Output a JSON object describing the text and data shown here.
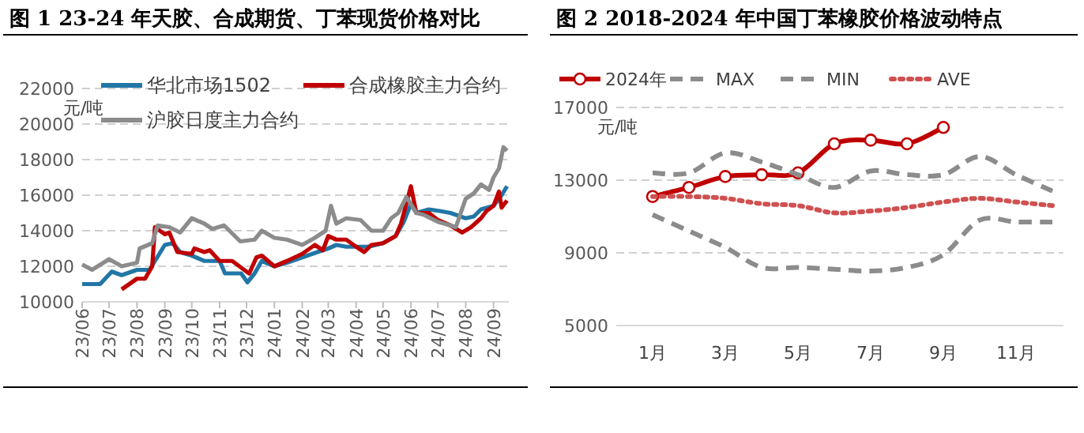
{
  "chart_data": [
    {
      "type": "line",
      "title": "图 1 23-24 年天胶、合成期货、丁苯现货价格对比",
      "ylabel": "元/吨",
      "xlim": [
        "2023-06-01",
        "2024-09-18"
      ],
      "ylim": [
        10000,
        22000
      ],
      "yticks": [
        10000,
        12000,
        14000,
        16000,
        18000,
        20000,
        22000
      ],
      "xticks": [
        {
          "value": "2023-06-01",
          "label": "23/06"
        },
        {
          "value": "2023-07-01",
          "label": "23/07"
        },
        {
          "value": "2023-08-01",
          "label": "23/08"
        },
        {
          "value": "2023-09-01",
          "label": "23/09"
        },
        {
          "value": "2023-10-01",
          "label": "23/10"
        },
        {
          "value": "2023-11-01",
          "label": "23/11"
        },
        {
          "value": "2023-12-01",
          "label": "23/12"
        },
        {
          "value": "2024-01-01",
          "label": "24/01"
        },
        {
          "value": "2024-02-01",
          "label": "24/02"
        },
        {
          "value": "2024-03-01",
          "label": "24/03"
        },
        {
          "value": "2024-04-01",
          "label": "24/04"
        },
        {
          "value": "2024-05-01",
          "label": "24/05"
        },
        {
          "value": "2024-06-01",
          "label": "24/06"
        },
        {
          "value": "2024-07-01",
          "label": "24/07"
        },
        {
          "value": "2024-08-01",
          "label": "24/08"
        },
        {
          "value": "2024-09-01",
          "label": "24/09"
        }
      ],
      "grid": "y",
      "legend": "top",
      "line_style": "solid",
      "marker": "none",
      "series": [
        {
          "name": "华北市场1502",
          "color": "#2176a6",
          "x": [
            "2023-06-01",
            "2023-06-21",
            "2023-07-04",
            "2023-07-15",
            "2023-08-01",
            "2023-08-15",
            "2023-09-01",
            "2023-09-10",
            "2023-09-18",
            "2023-10-01",
            "2023-10-15",
            "2023-11-01",
            "2023-11-07",
            "2023-11-25",
            "2023-12-02",
            "2023-12-10",
            "2023-12-18",
            "2024-01-01",
            "2024-01-15",
            "2024-02-01",
            "2024-02-18",
            "2024-03-01",
            "2024-03-10",
            "2024-03-21",
            "2024-04-01",
            "2024-04-15",
            "2024-05-01",
            "2024-05-15",
            "2024-05-24",
            "2024-06-01",
            "2024-06-07",
            "2024-06-21",
            "2024-07-04",
            "2024-07-15",
            "2024-08-01",
            "2024-08-10",
            "2024-08-18",
            "2024-09-01",
            "2024-09-10",
            "2024-09-16"
          ],
          "values": [
            11000,
            11000,
            11700,
            11500,
            11800,
            11800,
            13200,
            13300,
            12800,
            12600,
            12300,
            12300,
            11600,
            11600,
            11100,
            11600,
            12300,
            12000,
            12200,
            12500,
            12800,
            13000,
            13200,
            13100,
            13100,
            13100,
            13300,
            13700,
            14500,
            15500,
            15000,
            15200,
            15100,
            15000,
            14700,
            14800,
            15200,
            15400,
            16000,
            16500
          ]
        },
        {
          "name": "合成橡胶主力合约",
          "color": "#c00000",
          "x": [
            "2023-07-15",
            "2023-08-01",
            "2023-08-10",
            "2023-08-18",
            "2023-08-21",
            "2023-09-01",
            "2023-09-06",
            "2023-09-15",
            "2023-10-01",
            "2023-10-04",
            "2023-10-15",
            "2023-10-21",
            "2023-11-01",
            "2023-11-15",
            "2023-12-01",
            "2023-12-04",
            "2023-12-12",
            "2023-12-18",
            "2024-01-01",
            "2024-01-15",
            "2024-02-01",
            "2024-02-15",
            "2024-02-24",
            "2024-03-01",
            "2024-03-10",
            "2024-03-21",
            "2024-04-01",
            "2024-04-10",
            "2024-04-18",
            "2024-05-01",
            "2024-05-15",
            "2024-05-21",
            "2024-06-01",
            "2024-06-07",
            "2024-06-21",
            "2024-07-01",
            "2024-07-15",
            "2024-07-28",
            "2024-08-07",
            "2024-08-18",
            "2024-08-24",
            "2024-09-01",
            "2024-09-07",
            "2024-09-10",
            "2024-09-16"
          ],
          "values": [
            10700,
            11300,
            11300,
            12000,
            14200,
            13800,
            13900,
            12800,
            12700,
            13000,
            12800,
            12900,
            12300,
            12300,
            11700,
            11600,
            12500,
            12600,
            12000,
            12300,
            12700,
            13200,
            12900,
            13700,
            13500,
            13500,
            13100,
            12800,
            13200,
            13300,
            13700,
            14400,
            16500,
            15000,
            15000,
            14600,
            14300,
            13900,
            14200,
            14700,
            15100,
            15400,
            16200,
            15300,
            15700
          ]
        },
        {
          "name": "沪胶日度主力合约",
          "color": "#8c8c8c",
          "x": [
            "2023-06-01",
            "2023-06-12",
            "2023-07-01",
            "2023-07-15",
            "2023-08-01",
            "2023-08-04",
            "2023-08-18",
            "2023-08-24",
            "2023-09-06",
            "2023-09-18",
            "2023-10-01",
            "2023-10-15",
            "2023-10-24",
            "2023-11-06",
            "2023-11-24",
            "2023-12-10",
            "2023-12-18",
            "2024-01-01",
            "2024-01-15",
            "2024-02-01",
            "2024-02-15",
            "2024-02-27",
            "2024-03-04",
            "2024-03-10",
            "2024-03-21",
            "2024-04-06",
            "2024-04-18",
            "2024-05-01",
            "2024-05-10",
            "2024-05-18",
            "2024-05-27",
            "2024-06-07",
            "2024-06-15",
            "2024-07-01",
            "2024-07-15",
            "2024-07-21",
            "2024-08-01",
            "2024-08-10",
            "2024-08-18",
            "2024-08-27",
            "2024-09-01",
            "2024-09-07",
            "2024-09-12",
            "2024-09-16"
          ],
          "values": [
            12100,
            11800,
            12400,
            12000,
            12200,
            13000,
            13300,
            14300,
            14200,
            13900,
            14700,
            14400,
            14100,
            14300,
            13400,
            13500,
            14000,
            13600,
            13500,
            13200,
            13600,
            14000,
            15400,
            14400,
            14700,
            14600,
            14000,
            14000,
            14700,
            15000,
            15900,
            15000,
            14900,
            14500,
            14300,
            14200,
            15800,
            16100,
            16600,
            16300,
            17000,
            17500,
            18700,
            18500
          ]
        }
      ]
    },
    {
      "type": "line",
      "title": "图 2 2018-2024 年中国丁苯橡胶价格波动特点",
      "ylabel": "元/吨",
      "categories": [
        "1月",
        null,
        "3月",
        null,
        "5月",
        null,
        "7月",
        null,
        "9月",
        null,
        "11月",
        null
      ],
      "ylim": [
        5000,
        17000
      ],
      "yticks": [
        5000,
        9000,
        13000,
        17000
      ],
      "grid": "y",
      "legend": "top",
      "series": [
        {
          "name": "2024年",
          "color": "#c00000",
          "marker": "circle",
          "line_style": "solid",
          "values": [
            12100,
            12600,
            13200,
            13300,
            13400,
            15000,
            15200,
            15000,
            15900,
            null,
            null,
            null
          ]
        },
        {
          "name": "MAX",
          "color": "#8c8c8c",
          "marker": "none",
          "line_style": "dashed",
          "values": [
            13400,
            13400,
            14500,
            14000,
            13300,
            12600,
            13500,
            13300,
            13300,
            14300,
            13300,
            12400
          ]
        },
        {
          "name": "MIN",
          "color": "#8c8c8c",
          "marker": "none",
          "line_style": "dashed",
          "values": [
            11100,
            10200,
            9300,
            8200,
            8200,
            8100,
            8000,
            8200,
            8900,
            10800,
            10700,
            10700
          ]
        },
        {
          "name": "AVE",
          "color": "#d05050",
          "marker": "none",
          "line_style": "dotted",
          "values": [
            12100,
            12100,
            12000,
            11700,
            11600,
            11200,
            11300,
            11500,
            11800,
            12000,
            11800,
            11600
          ]
        }
      ]
    }
  ]
}
